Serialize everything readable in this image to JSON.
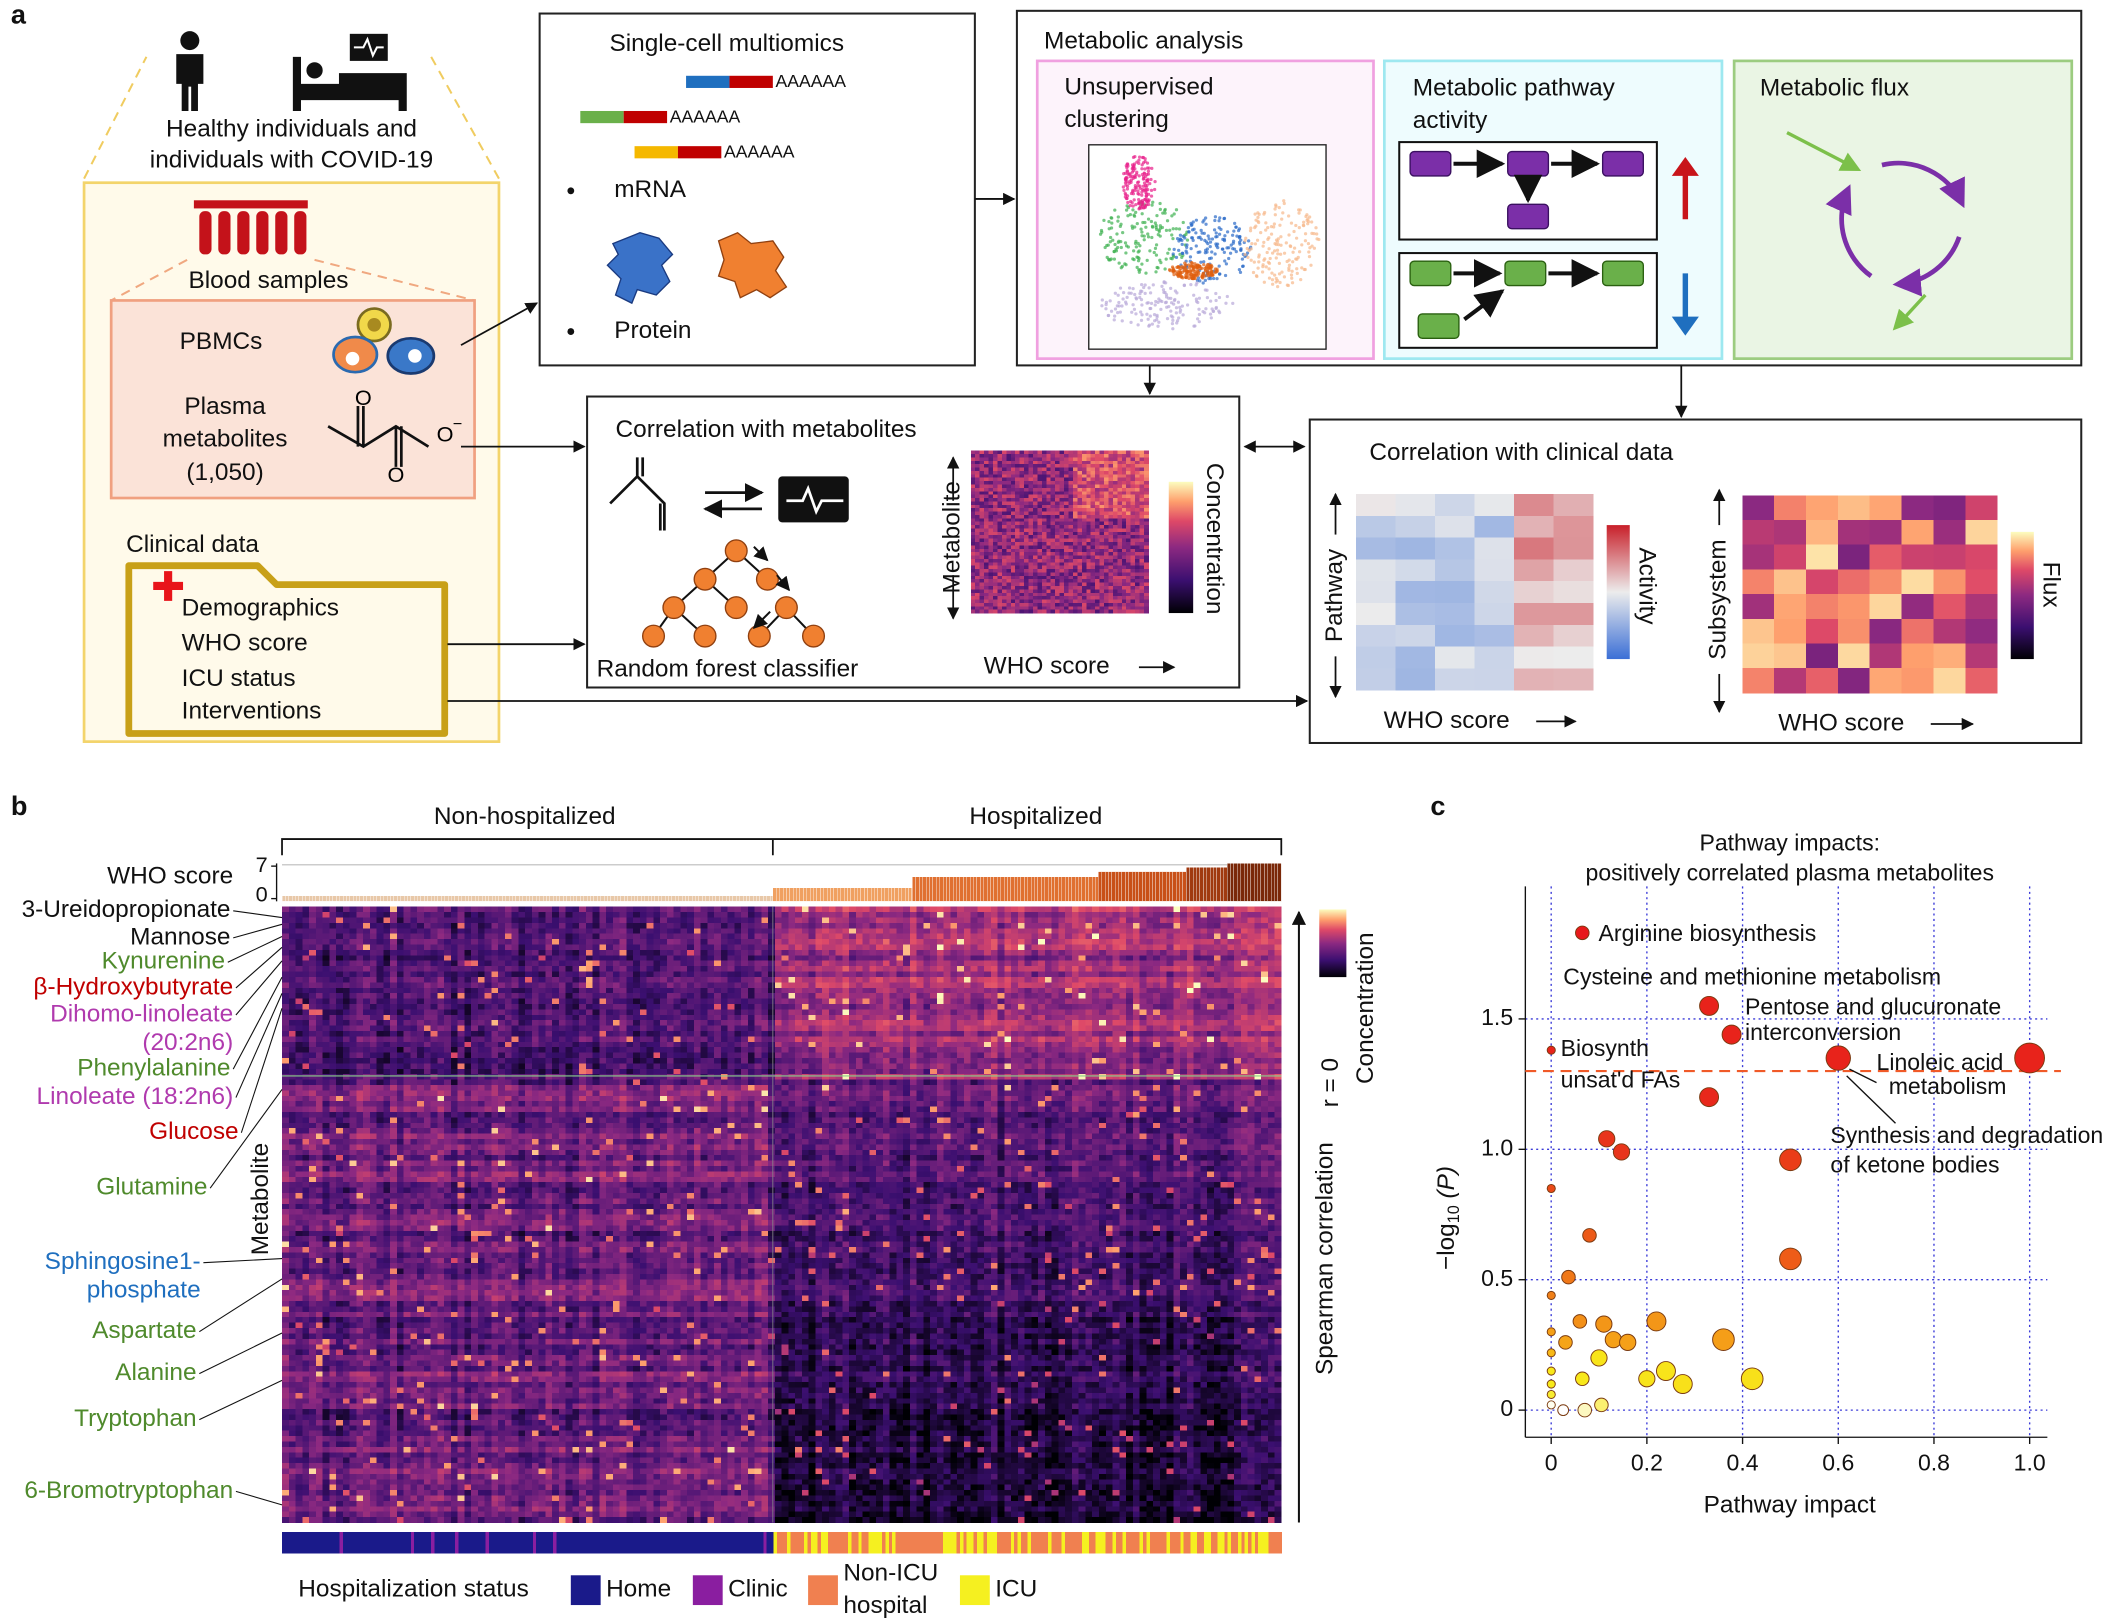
{
  "panel_a": {
    "label": "a",
    "cohort": [
      "Healthy individuals and",
      "individuals with COVID-19"
    ],
    "blood_samples": "Blood samples",
    "pbmcs": "PBMCs",
    "plasma": [
      "Plasma",
      "metabolites",
      "(1,050)"
    ],
    "clinical_data": {
      "title": "Clinical data",
      "items": [
        "Demographics",
        "WHO score",
        "ICU status",
        "Interventions"
      ]
    },
    "multiomics": {
      "title": "Single-cell multiomics",
      "poly_a": "AAAAAA",
      "items": [
        "mRNA",
        "Protein"
      ]
    },
    "metabolic_analysis": {
      "title": "Metabolic analysis",
      "clustering": [
        "Unsupervised",
        "clustering"
      ],
      "pathway_activity": [
        "Metabolic pathway",
        "activity"
      ],
      "flux": "Metabolic flux"
    },
    "correlation_metabolites": {
      "title": "Correlation with metabolites",
      "classifier": "Random forest classifier",
      "y_label": "Metabolite",
      "x_label": "WHO score",
      "colorbar": "Concentration"
    },
    "correlation_clinical": {
      "title": "Correlation with clinical data",
      "pathway": {
        "y_label": "Pathway",
        "x_label": "WHO score",
        "colorbar": "Activity"
      },
      "flux": {
        "y_label": "Subsystem",
        "x_label": "WHO score",
        "colorbar": "Flux"
      }
    }
  },
  "panel_b": {
    "label": "b",
    "groups": [
      "Non-hospitalized",
      "Hospitalized"
    ],
    "who_score": {
      "label": "WHO score",
      "ticks": [
        7,
        0
      ]
    },
    "metabolites": [
      {
        "lines": [
          "3-Ureidopropionate"
        ],
        "color": "#111111"
      },
      {
        "lines": [
          "Mannose"
        ],
        "color": "#111111"
      },
      {
        "lines": [
          "Kynurenine"
        ],
        "color": "#4f8a2c"
      },
      {
        "lines": [
          "β-Hydroxybutyrate"
        ],
        "color": "#c00000"
      },
      {
        "lines": [
          "Dihomo-linoleate",
          "(20:2n6)"
        ],
        "color": "#b03aae"
      },
      {
        "lines": [
          "Phenylalanine"
        ],
        "color": "#4f8a2c"
      },
      {
        "lines": [
          "Linoleate (18:2n6)"
        ],
        "color": "#b03aae"
      },
      {
        "lines": [
          "Glucose"
        ],
        "color": "#c00000"
      },
      {
        "lines": [
          "Glutamine"
        ],
        "color": "#4f8a2c"
      },
      {
        "lines": [
          "Sphingosine1-",
          "phosphate"
        ],
        "color": "#1f6fbf"
      },
      {
        "lines": [
          "Aspartate"
        ],
        "color": "#4f8a2c"
      },
      {
        "lines": [
          "Alanine"
        ],
        "color": "#4f8a2c"
      },
      {
        "lines": [
          "Tryptophan"
        ],
        "color": "#4f8a2c"
      },
      {
        "lines": [
          "6-Bromotryptophan"
        ],
        "color": "#4f8a2c"
      }
    ],
    "y_label": "Metabolite",
    "correlation_label": "Spearman correlation",
    "r_zero": "r = 0",
    "colorbar": "Concentration",
    "legend": {
      "title": "Hospitalization status",
      "items": [
        {
          "name": [
            "Home"
          ],
          "color": "#1a1a8a"
        },
        {
          "name": [
            "Clinic"
          ],
          "color": "#8a1ea0"
        },
        {
          "name": [
            "Non-ICU",
            "hospital"
          ],
          "color": "#f08050"
        },
        {
          "name": [
            "ICU"
          ],
          "color": "#f5f020"
        }
      ]
    }
  },
  "chart_data": {
    "type": "scatter",
    "panel_label": "c",
    "title": [
      "Pathway impacts:",
      "positively correlated plasma metabolites"
    ],
    "x_label": "Pathway impact",
    "y_label": [
      "−log",
      "10",
      " (P)"
    ],
    "x": [
      0.065,
      0.33,
      0.377,
      0,
      0.6,
      1.0,
      0.33,
      0.116,
      0.147,
      0.5,
      0,
      0.08,
      0.5,
      0.036,
      0,
      0.06,
      0.11,
      0.22,
      0.36,
      0.13,
      0.16,
      0.03,
      0,
      0,
      0.42,
      0.275,
      0.24,
      0.2,
      0.1,
      0.065,
      0,
      0,
      0,
      0.105,
      0.07,
      0.025,
      0
    ],
    "y": [
      1.83,
      1.55,
      1.44,
      1.38,
      1.35,
      1.35,
      1.2,
      1.04,
      0.99,
      0.96,
      0.85,
      0.67,
      0.58,
      0.51,
      0.44,
      0.34,
      0.33,
      0.34,
      0.27,
      0.27,
      0.26,
      0.26,
      0.3,
      0.22,
      0.12,
      0.1,
      0.15,
      0.12,
      0.2,
      0.12,
      0.15,
      0.1,
      0.06,
      0.02,
      0,
      0,
      0.02
    ],
    "sizes": [
      5,
      7,
      7,
      3,
      9,
      11,
      7,
      6,
      6,
      8,
      3,
      5,
      8,
      5,
      3,
      5,
      6,
      7,
      8,
      6,
      6,
      5,
      3,
      3,
      8,
      7,
      7,
      6,
      6,
      5,
      3,
      3,
      3,
      5,
      5,
      4,
      3
    ],
    "colors": [
      "#e8191b",
      "#e8231b",
      "#e8231b",
      "#e8231b",
      "#e8231b",
      "#e8231b",
      "#e8281b",
      "#e8351b",
      "#e8351b",
      "#ea3d18",
      "#ea4a18",
      "#ec5a18",
      "#ee5c18",
      "#f07818",
      "#f08018",
      "#f39018",
      "#f39618",
      "#f39618",
      "#f59e18",
      "#f5a018",
      "#f5a018",
      "#f5a418",
      "#f5a018",
      "#f7b818",
      "#f8e01a",
      "#f8e01a",
      "#f8e41a",
      "#f8e41a",
      "#f8e41a",
      "#f8e81a",
      "#f8e81a",
      "#f8ea1a",
      "#f8ec30",
      "#fbf070",
      "#fcf8c0",
      "#ffffff",
      "#fffff0"
    ],
    "xlim": [
      -0.054,
      1.037
    ],
    "ylim": [
      -0.104,
      2.008
    ],
    "xticks": [
      0,
      0.2,
      0.4,
      0.6,
      0.8,
      {
        "value": 1,
        "label": "1.0"
      }
    ],
    "yticks": [
      0,
      0.5,
      {
        "value": 1,
        "label": "1.0"
      },
      1.5
    ],
    "grid": true,
    "threshold": 1.3,
    "annotations": [
      "Arginine biosynthesis",
      "Cysteine and methionine metabolism",
      "Pentose and glucuronate",
      "interconversion",
      "Biosynth",
      "unsat'd FAs",
      "Linoleic acid",
      "metabolism",
      "Synthesis and degradation",
      "of ketone bodies"
    ]
  }
}
